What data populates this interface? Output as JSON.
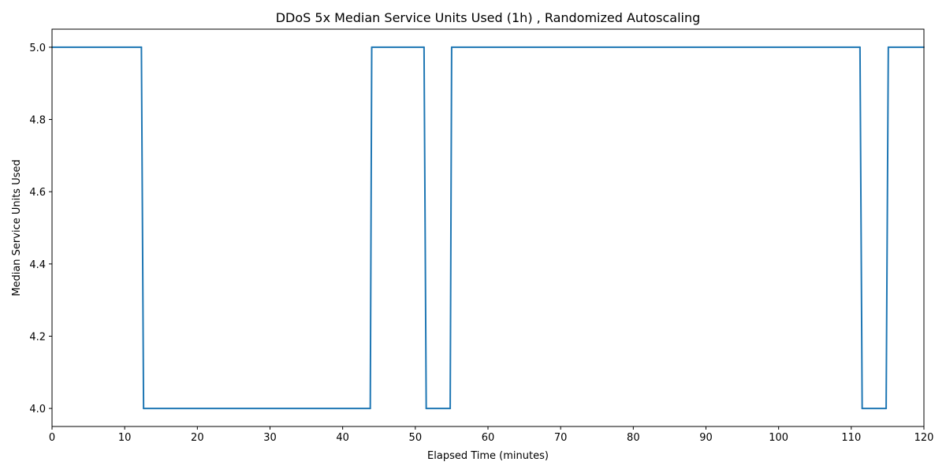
{
  "chart_data": {
    "type": "line",
    "title": "DDoS 5x Median Service Units Used (1h) , Randomized Autoscaling",
    "xlabel": "Elapsed Time (minutes)",
    "ylabel": "Median Service Units Used",
    "xlim": [
      0,
      120
    ],
    "ylim": [
      3.95,
      5.05
    ],
    "xticks": [
      0,
      10,
      20,
      30,
      40,
      50,
      60,
      70,
      80,
      90,
      100,
      110,
      120
    ],
    "yticks": [
      4.0,
      4.2,
      4.4,
      4.6,
      4.8,
      5.0
    ],
    "ytick_labels": [
      "4.0",
      "4.2",
      "4.4",
      "4.6",
      "4.8",
      "5.0"
    ],
    "grid": false,
    "series": [
      {
        "color": "#1f77b4",
        "x": [
          0,
          12.3,
          12.6,
          43.8,
          44.0,
          51.2,
          51.5,
          54.8,
          55.0,
          111.2,
          111.5,
          114.8,
          115.1,
          120
        ],
        "y": [
          5,
          5,
          4,
          4,
          5,
          5,
          4,
          4,
          5,
          5,
          4,
          4,
          5,
          5
        ]
      }
    ]
  }
}
